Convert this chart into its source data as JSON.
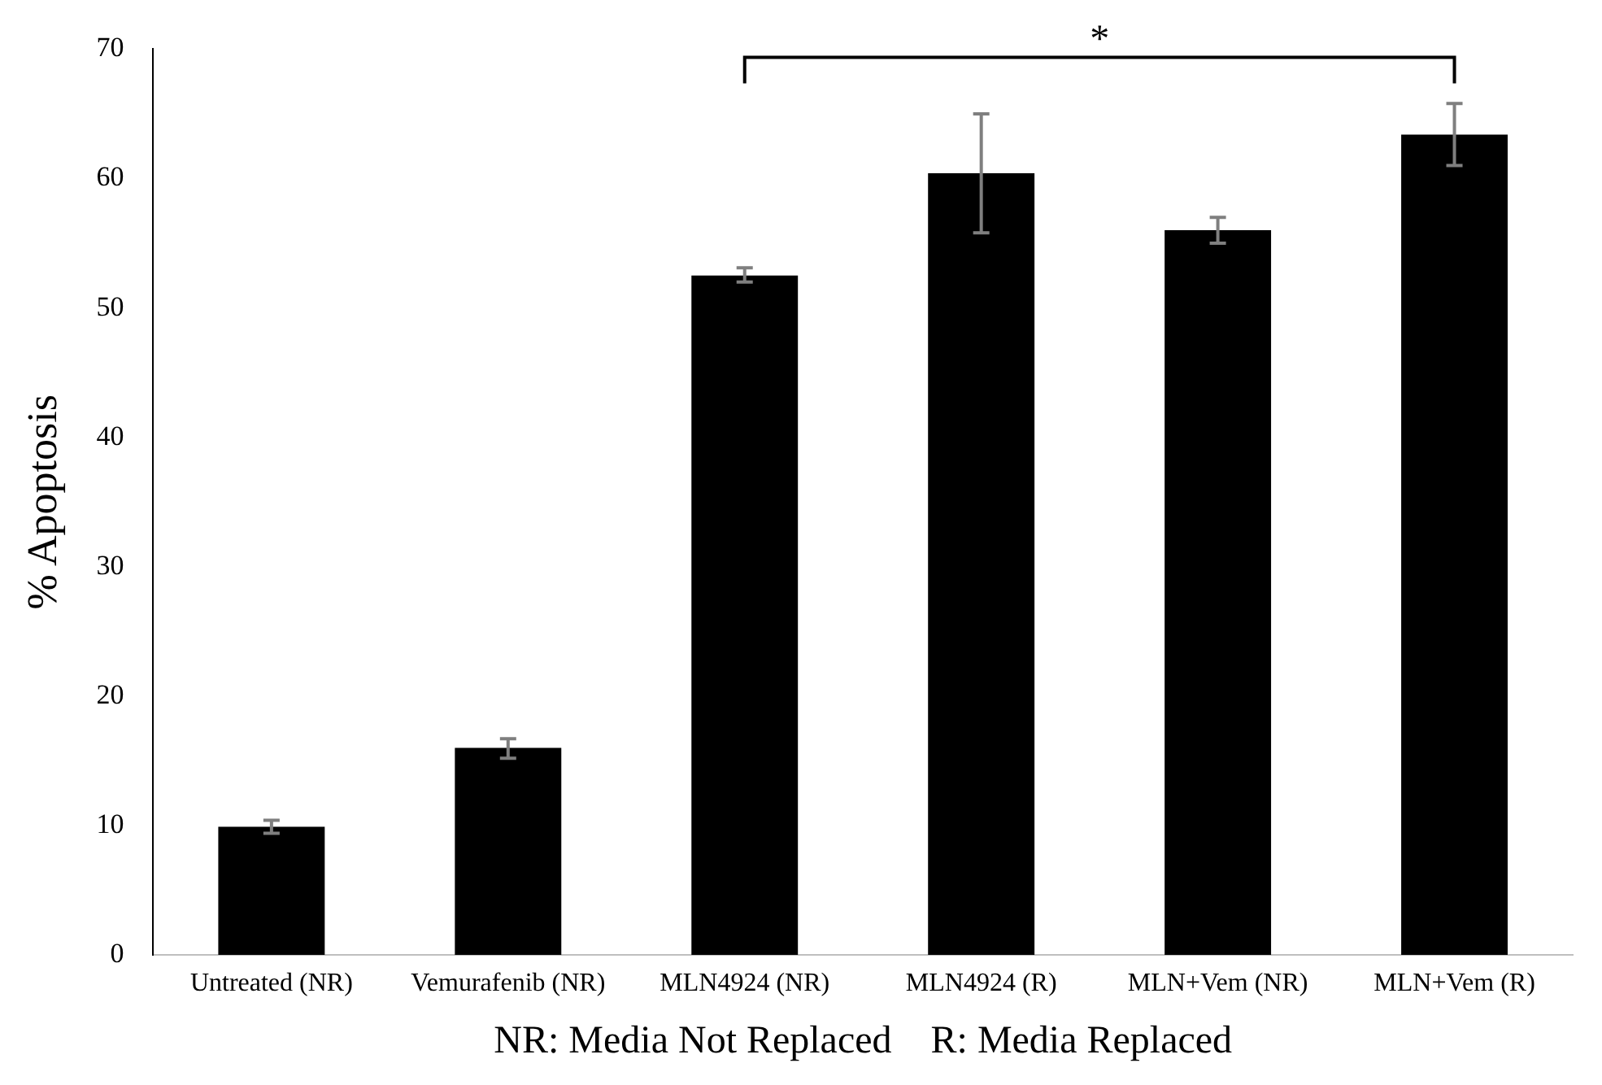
{
  "chart_data": {
    "type": "bar",
    "xlabel": "NR: Media Not Replaced    R: Media Replaced",
    "ylabel": "% Apoptosis",
    "categories": [
      "Untreated (NR)",
      "Vemurafenib (NR)",
      "MLN4924 (NR)",
      "MLN4924 (R)",
      "MLN+Vem (NR)",
      "MLN+Vem (R)"
    ],
    "values": [
      9.9,
      16,
      52.5,
      60.4,
      56,
      63.4
    ],
    "errors": [
      [
        9.4,
        10.4
      ],
      [
        15.2,
        16.7
      ],
      [
        52,
        53.1
      ],
      [
        55.8,
        65
      ],
      [
        55,
        57
      ],
      [
        61,
        65.8
      ]
    ],
    "color": "#000000",
    "ylim": [
      0,
      70
    ],
    "yticks": [
      0,
      10,
      20,
      30,
      40,
      50,
      60,
      70
    ],
    "grid": false,
    "legend": false,
    "annotations": [
      "*"
    ]
  }
}
